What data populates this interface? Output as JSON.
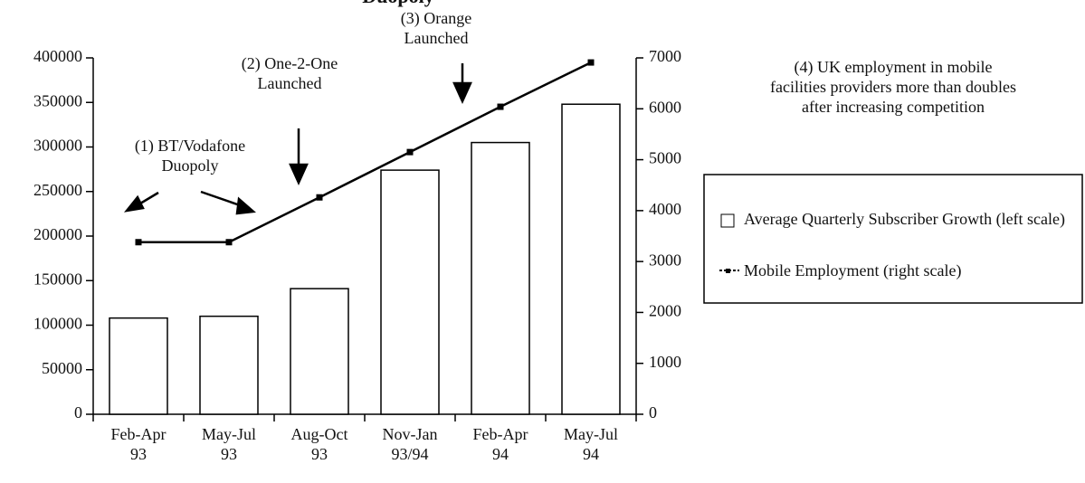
{
  "chart_data": {
    "type": "bar_line",
    "title": "Duopoly",
    "categories": [
      [
        "Feb-Apr",
        "93"
      ],
      [
        "May-Jul",
        "93"
      ],
      [
        "Aug-Oct",
        "93"
      ],
      [
        "Nov-Jan",
        "93/94"
      ],
      [
        "Feb-Apr",
        "94"
      ],
      [
        "May-Jul",
        "94"
      ]
    ],
    "series": [
      {
        "name": "Average Quarterly Subscriber Growth (left scale)",
        "type": "bar",
        "color": "#ffffff",
        "values": [
          108000,
          110000,
          141000,
          274000,
          305000,
          348000
        ]
      },
      {
        "name": "Mobile Employment (right scale)",
        "type": "line",
        "axis": "y2",
        "color": "#000000",
        "values": [
          3380,
          3380,
          4260,
          5150,
          6040,
          6910
        ]
      }
    ],
    "ylim": [
      0,
      400000
    ],
    "yticks": [
      0,
      50000,
      100000,
      150000,
      200000,
      250000,
      300000,
      350000,
      400000
    ],
    "y2lim": [
      0,
      7000
    ],
    "y2ticks": [
      0,
      1000,
      2000,
      3000,
      4000,
      5000,
      6000,
      7000
    ],
    "annotations": [
      [
        "(1) BT/Vodafone",
        "Duopoly"
      ],
      [
        "(2) One-2-One",
        "Launched"
      ],
      [
        "(3) Orange",
        "Launched"
      ],
      [
        "(4) UK employment in mobile",
        "facilities providers more than doubles",
        "after increasing competition"
      ]
    ],
    "grid": false
  }
}
